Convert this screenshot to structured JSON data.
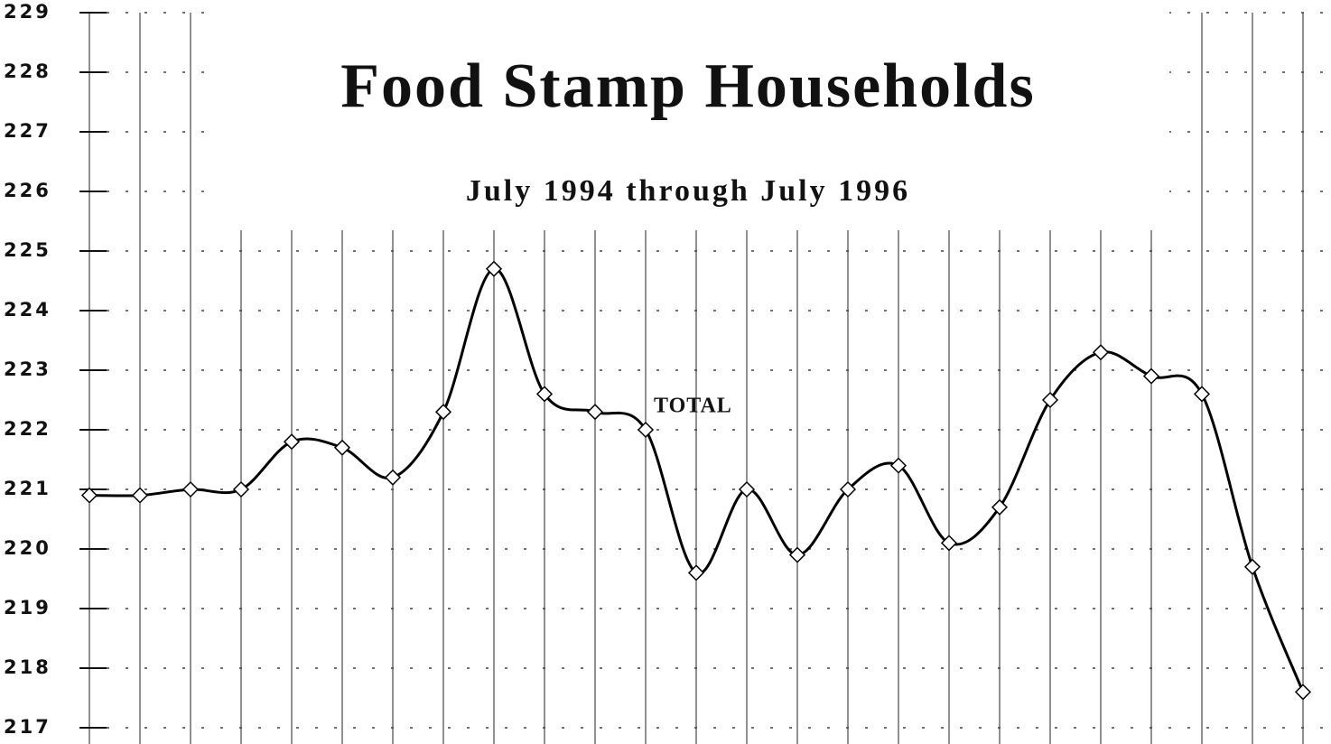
{
  "chart_data": {
    "type": "line",
    "title": "Food Stamp Households",
    "subtitle": "July 1994 through July 1996",
    "categories": [
      null,
      null,
      null,
      null,
      null,
      null,
      null,
      null,
      null,
      null,
      null,
      null,
      null,
      null,
      null,
      null,
      null,
      null,
      null,
      null,
      null,
      null,
      null,
      null,
      null
    ],
    "series": [
      {
        "name": "TOTAL",
        "color": "#000000",
        "values": [
          220.9,
          220.9,
          221.0,
          221.0,
          221.8,
          221.7,
          221.2,
          222.3,
          224.7,
          222.6,
          222.3,
          222.0,
          219.6,
          221.0,
          219.9,
          221.0,
          221.4,
          220.1,
          220.7,
          222.5,
          223.3,
          222.9,
          222.6,
          219.7,
          217.6
        ]
      }
    ],
    "ylim": [
      217,
      229
    ],
    "yticks": [
      217,
      218,
      219,
      220,
      221,
      222,
      223,
      224,
      225,
      226,
      227,
      228,
      229
    ],
    "grid": true
  }
}
